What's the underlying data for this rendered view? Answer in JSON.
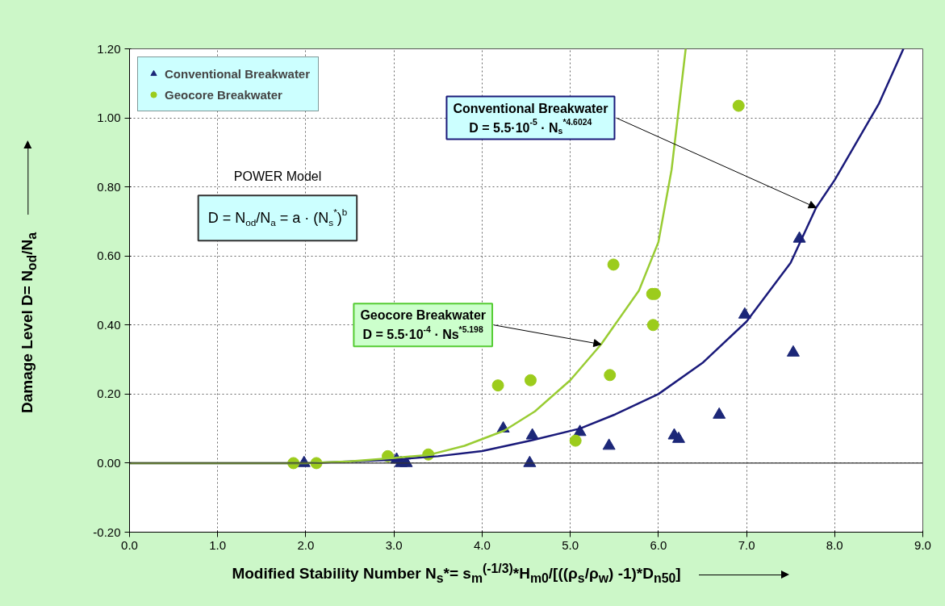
{
  "chart_data": {
    "type": "scatter",
    "xlabel": "Modified Stability Number N$_{s}$*= s$_{m}$$^{(-1/3)}$*H$_{m0}$/[((ρ$_{s}$/ρ$_{w}$) -1)*D$_{n50}$]",
    "ylabel": "Damage Level  D= N$_{od}$/N$_{a}$",
    "xlim": [
      0,
      9
    ],
    "ylim": [
      -0.2,
      1.2
    ],
    "xticks": [
      {
        "value": 0,
        "label": "0.0"
      },
      {
        "value": 1,
        "label": "1.0"
      },
      {
        "value": 2,
        "label": "2.0"
      },
      {
        "value": 3,
        "label": "3.0"
      },
      {
        "value": 4,
        "label": "4.0"
      },
      {
        "value": 5,
        "label": "5.0"
      },
      {
        "value": 6,
        "label": "6.0"
      },
      {
        "value": 7,
        "label": "7.0"
      },
      {
        "value": 8,
        "label": "8.0"
      },
      {
        "value": 9,
        "label": "9.0"
      }
    ],
    "yticks": [
      {
        "value": -0.2,
        "label": "-0.20"
      },
      {
        "value": 0,
        "label": "0.00"
      },
      {
        "value": 0.2,
        "label": "0.20"
      },
      {
        "value": 0.4,
        "label": "0.40"
      },
      {
        "value": 0.6,
        "label": "0.60"
      },
      {
        "value": 0.8,
        "label": "0.80"
      },
      {
        "value": 1.0,
        "label": "1.00"
      },
      {
        "value": 1.2,
        "label": "1.20"
      }
    ],
    "grid": true,
    "legend": "top left",
    "series": [
      {
        "name": "Conventional Breakwater",
        "marker": "triangle",
        "color": "#1c2778",
        "x": [
          1.98,
          3.03,
          3.08,
          3.14,
          4.24,
          4.54,
          4.57,
          5.11,
          5.44,
          6.18,
          6.23,
          6.69,
          6.98,
          7.53,
          7.6
        ],
        "values": [
          0.0,
          0.01,
          0.0,
          0.0,
          0.1,
          0.0,
          0.08,
          0.09,
          0.05,
          0.08,
          0.07,
          0.14,
          0.43,
          0.32,
          0.65
        ]
      },
      {
        "name": "Geocore Breakwater",
        "marker": "circle",
        "color": "#9ccc1c",
        "x": [
          1.86,
          2.12,
          2.93,
          3.39,
          4.18,
          4.55,
          5.06,
          5.45,
          5.49,
          5.93,
          5.96,
          5.94,
          6.91
        ],
        "values": [
          0.0,
          0.0,
          0.02,
          0.025,
          0.225,
          0.24,
          0.065,
          0.255,
          0.575,
          0.49,
          0.49,
          0.4,
          1.035
        ]
      },
      {
        "type": "line",
        "color": "#1a1a7a",
        "x": [
          0,
          2.0,
          3.0,
          3.5,
          4.0,
          4.56,
          5.11,
          5.5,
          6.0,
          6.5,
          7.0,
          7.5,
          7.79,
          8.0,
          8.5,
          8.78
        ],
        "values": [
          0,
          0,
          0.01,
          0.02,
          0.035,
          0.066,
          0.1,
          0.14,
          0.2,
          0.29,
          0.41,
          0.58,
          0.74,
          0.82,
          1.04,
          1.2
        ]
      },
      {
        "type": "line",
        "color": "#99cc33",
        "x": [
          0,
          2.0,
          2.5,
          3.0,
          3.4,
          3.8,
          4.25,
          4.6,
          5.0,
          5.35,
          5.78,
          6.0,
          6.15,
          6.31
        ],
        "values": [
          0,
          0,
          0.005,
          0.015,
          0.024,
          0.05,
          0.094,
          0.15,
          0.24,
          0.344,
          0.5,
          0.64,
          0.85,
          1.2
        ]
      }
    ],
    "annotations": [
      "POWER Model",
      "D = N$_{od}$/N$_{a}$ = a · (N$_{s}$$^{*}$)$^{b}$",
      {
        "text": "Conventional Breakwater\nD = 5.5·10$^{-5}$ · N$_{s}$$^{*4.6024}$",
        "x": 7.79,
        "y": 0.74
      },
      {
        "text": "Geocore Breakwater\nD = 5.5·10$^{-4}$ · Ns$^{*5.198}$",
        "x": 5.35,
        "y": 0.344
      }
    ]
  }
}
